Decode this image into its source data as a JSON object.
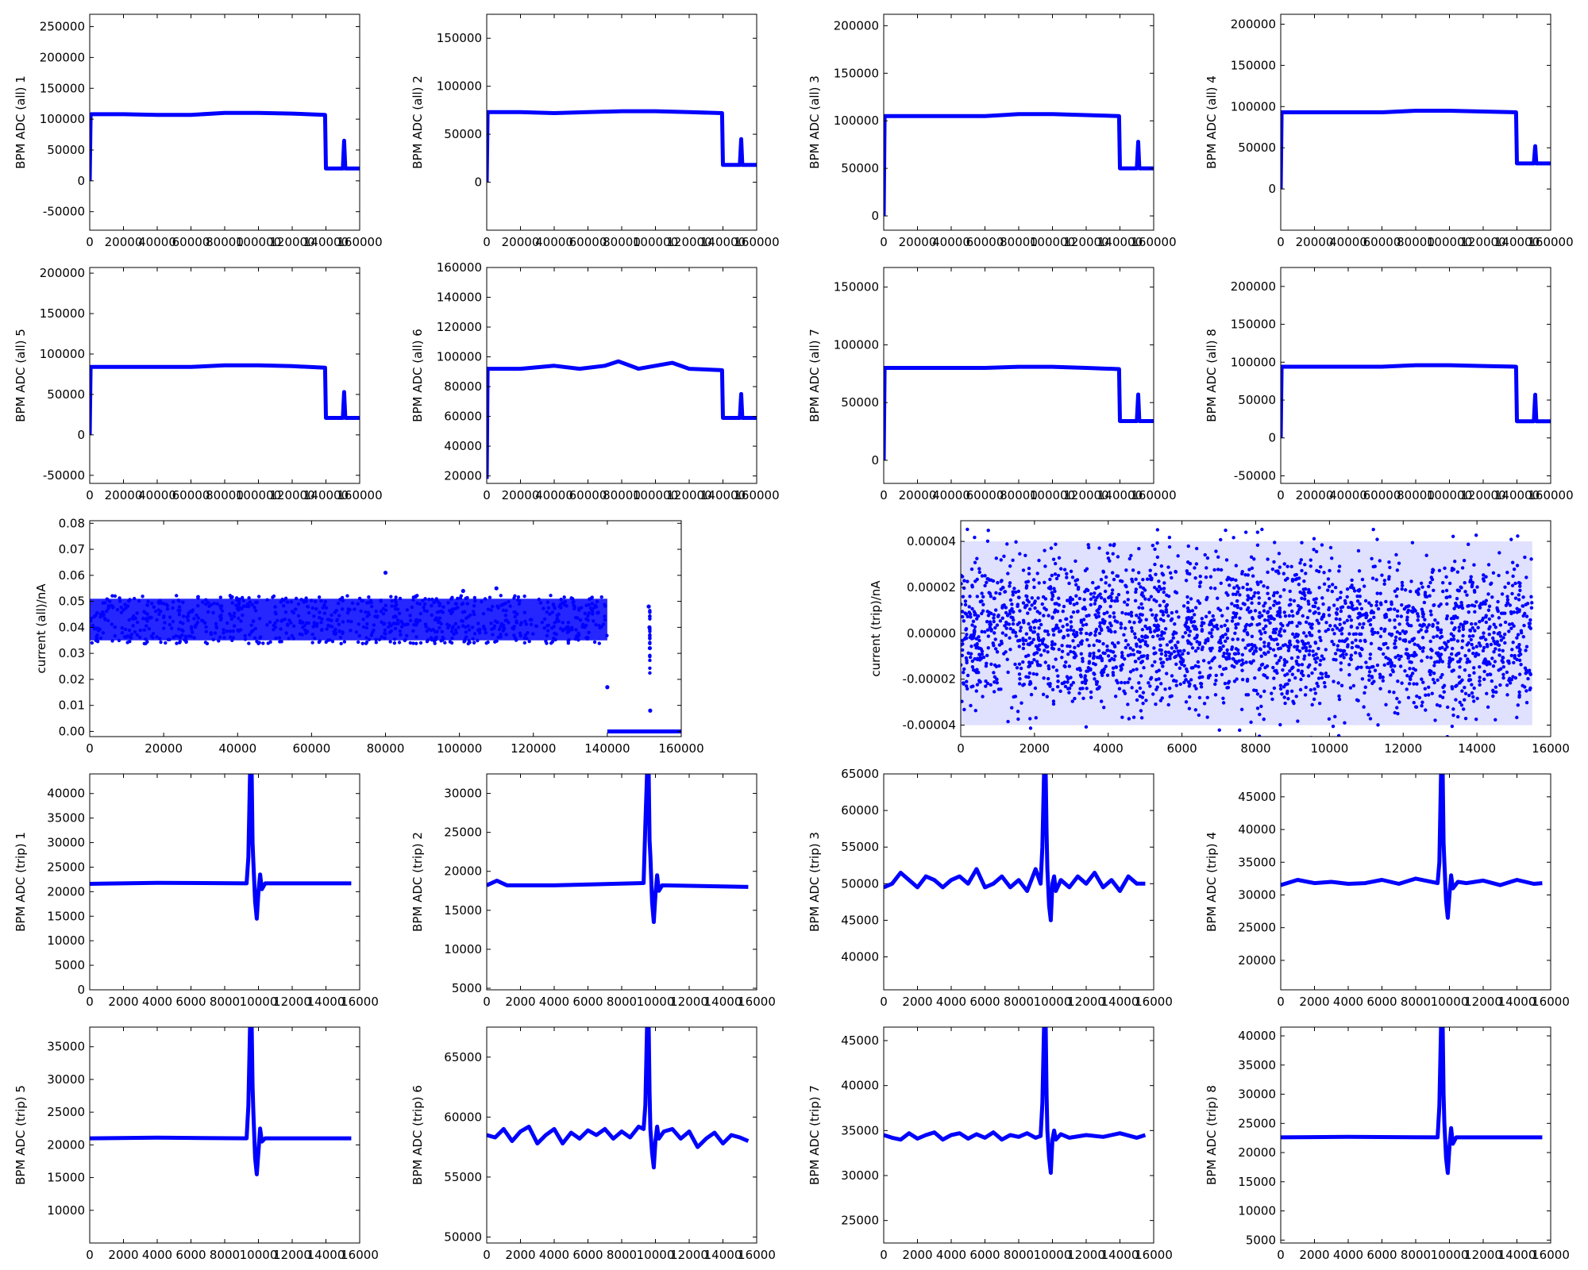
{
  "style": {
    "series_color": "#0000ff",
    "axes_color": "#000000",
    "background": "#ffffff"
  },
  "chart_data": [
    {
      "type": "line",
      "ylabel": "BPM ADC (all) 1",
      "xlim": [
        0,
        160000
      ],
      "ylim": [
        -80000,
        270000
      ],
      "xticks": [
        0,
        20000,
        40000,
        60000,
        80000,
        100000,
        120000,
        140000,
        160000
      ],
      "yticks": [
        -50000,
        0,
        50000,
        100000,
        150000,
        200000,
        250000
      ],
      "x": [
        0,
        500,
        1000,
        20000,
        40000,
        60000,
        80000,
        100000,
        120000,
        139500,
        140000,
        148000,
        150000,
        150800,
        151500,
        160000
      ],
      "y": [
        0,
        105000,
        108000,
        108000,
        107000,
        107000,
        110000,
        110000,
        109000,
        107000,
        20000,
        20000,
        20000,
        65000,
        20000,
        20000
      ]
    },
    {
      "type": "line",
      "ylabel": "BPM ADC (all) 2",
      "xlim": [
        0,
        160000
      ],
      "ylim": [
        -50000,
        175000
      ],
      "xticks": [
        0,
        20000,
        40000,
        60000,
        80000,
        100000,
        120000,
        140000,
        160000
      ],
      "yticks": [
        0,
        50000,
        100000,
        150000
      ],
      "x": [
        0,
        500,
        1000,
        20000,
        40000,
        60000,
        80000,
        100000,
        120000,
        139500,
        140000,
        148000,
        150000,
        150800,
        151500,
        160000
      ],
      "y": [
        0,
        73000,
        73000,
        73000,
        72000,
        73000,
        74000,
        74000,
        73000,
        72000,
        18000,
        18000,
        18000,
        45000,
        18000,
        18000
      ]
    },
    {
      "type": "line",
      "ylabel": "BPM ADC (all) 3",
      "xlim": [
        0,
        160000
      ],
      "ylim": [
        -15000,
        212000
      ],
      "xticks": [
        0,
        20000,
        40000,
        60000,
        80000,
        100000,
        120000,
        140000,
        160000
      ],
      "yticks": [
        0,
        50000,
        100000,
        150000,
        200000
      ],
      "x": [
        0,
        500,
        1000,
        20000,
        40000,
        60000,
        80000,
        100000,
        120000,
        139500,
        140000,
        148000,
        150000,
        150800,
        151500,
        160000
      ],
      "y": [
        0,
        105000,
        105000,
        105000,
        105000,
        105000,
        107000,
        107000,
        106000,
        105000,
        50000,
        50000,
        50000,
        78000,
        50000,
        50000
      ]
    },
    {
      "type": "line",
      "ylabel": "BPM ADC (all) 4",
      "xlim": [
        0,
        160000
      ],
      "ylim": [
        -50000,
        212000
      ],
      "xticks": [
        0,
        20000,
        40000,
        60000,
        80000,
        100000,
        120000,
        140000,
        160000
      ],
      "yticks": [
        0,
        50000,
        100000,
        150000,
        200000
      ],
      "x": [
        0,
        500,
        1000,
        20000,
        40000,
        60000,
        80000,
        100000,
        120000,
        139500,
        140000,
        148000,
        150000,
        150800,
        151500,
        160000
      ],
      "y": [
        0,
        93000,
        93000,
        93000,
        93000,
        93000,
        95000,
        95000,
        94000,
        93000,
        31000,
        31000,
        31000,
        52000,
        31000,
        31000
      ]
    },
    {
      "type": "line",
      "ylabel": "BPM ADC (all) 5",
      "xlim": [
        0,
        160000
      ],
      "ylim": [
        -60000,
        207000
      ],
      "xticks": [
        0,
        20000,
        40000,
        60000,
        80000,
        100000,
        120000,
        140000,
        160000
      ],
      "yticks": [
        -50000,
        0,
        50000,
        100000,
        150000,
        200000
      ],
      "x": [
        0,
        500,
        1000,
        20000,
        40000,
        60000,
        80000,
        100000,
        120000,
        139500,
        140000,
        148000,
        150000,
        150800,
        151500,
        160000
      ],
      "y": [
        0,
        84000,
        84000,
        84000,
        84000,
        84000,
        86000,
        86000,
        85000,
        83000,
        21000,
        21000,
        21000,
        53000,
        21000,
        21000
      ]
    },
    {
      "type": "line",
      "ylabel": "BPM ADC (all) 6",
      "xlim": [
        0,
        160000
      ],
      "ylim": [
        15000,
        160000
      ],
      "xticks": [
        0,
        20000,
        40000,
        60000,
        80000,
        100000,
        120000,
        140000,
        160000
      ],
      "yticks": [
        20000,
        40000,
        60000,
        80000,
        100000,
        120000,
        140000,
        160000
      ],
      "x": [
        0,
        500,
        1000,
        20000,
        40000,
        55000,
        70000,
        78000,
        90000,
        110000,
        120000,
        139500,
        140000,
        148000,
        150000,
        150800,
        151500,
        160000
      ],
      "y": [
        18000,
        92000,
        92000,
        92000,
        94000,
        92000,
        94000,
        97000,
        92000,
        96000,
        92000,
        91000,
        59000,
        59000,
        59000,
        75000,
        59000,
        59000
      ]
    },
    {
      "type": "line",
      "ylabel": "BPM ADC (all) 7",
      "xlim": [
        0,
        160000
      ],
      "ylim": [
        -20000,
        167000
      ],
      "xticks": [
        0,
        20000,
        40000,
        60000,
        80000,
        100000,
        120000,
        140000,
        160000
      ],
      "yticks": [
        0,
        50000,
        100000,
        150000
      ],
      "x": [
        0,
        500,
        1000,
        20000,
        40000,
        60000,
        80000,
        100000,
        120000,
        139500,
        140000,
        148000,
        150000,
        150800,
        151500,
        160000
      ],
      "y": [
        0,
        80000,
        80000,
        80000,
        80000,
        80000,
        81000,
        81000,
        80000,
        79000,
        34000,
        34000,
        34000,
        57000,
        34000,
        34000
      ]
    },
    {
      "type": "line",
      "ylabel": "BPM ADC (all) 8",
      "xlim": [
        0,
        160000
      ],
      "ylim": [
        -60000,
        225000
      ],
      "xticks": [
        0,
        20000,
        40000,
        60000,
        80000,
        100000,
        120000,
        140000,
        160000
      ],
      "yticks": [
        -50000,
        0,
        50000,
        100000,
        150000,
        200000
      ],
      "x": [
        0,
        500,
        1000,
        20000,
        40000,
        60000,
        80000,
        100000,
        120000,
        139500,
        140000,
        148000,
        150000,
        150800,
        151500,
        160000
      ],
      "y": [
        0,
        94000,
        94000,
        94000,
        94000,
        94000,
        96000,
        96000,
        95000,
        94000,
        22000,
        22000,
        22000,
        57000,
        22000,
        22000
      ]
    },
    {
      "type": "scatter",
      "ylabel": "current (all)/nA",
      "xlim": [
        0,
        160000
      ],
      "ylim": [
        -0.002,
        0.081
      ],
      "xticks": [
        0,
        20000,
        40000,
        60000,
        80000,
        100000,
        120000,
        140000,
        160000
      ],
      "yticks": [
        0.0,
        0.01,
        0.02,
        0.03,
        0.04,
        0.05,
        0.06,
        0.07,
        0.08
      ],
      "ytick_decimals": 2,
      "band": {
        "x": [
          0,
          140000
        ],
        "lower": 0.035,
        "upper": 0.051
      },
      "x": [
        80000,
        101000,
        110000,
        140000,
        151200,
        151400,
        151500,
        151600,
        151800
      ],
      "y": [
        0.061,
        0.054,
        0.055,
        0.017,
        0.048,
        0.04,
        0.032,
        0.008,
        0.0
      ]
    },
    {
      "type": "scatter",
      "ylabel": "current (trip)/nA",
      "xlim": [
        0,
        16000
      ],
      "ylim": [
        -4.5e-05,
        4.9e-05
      ],
      "xticks": [
        0,
        2000,
        4000,
        6000,
        8000,
        10000,
        12000,
        14000,
        16000
      ],
      "yticks": [
        -4e-05,
        -2e-05,
        0.0,
        2e-05,
        4e-05
      ],
      "ytick_decimals": 5,
      "band": {
        "x": [
          0,
          15500
        ],
        "lower": -4e-05,
        "upper": 4e-05
      }
    },
    {
      "type": "line",
      "ylabel": "BPM ADC (trip) 1",
      "xlim": [
        0,
        16000
      ],
      "ylim": [
        0,
        44000
      ],
      "xticks": [
        0,
        2000,
        4000,
        6000,
        8000,
        10000,
        12000,
        14000,
        16000
      ],
      "yticks": [
        0,
        5000,
        10000,
        15000,
        20000,
        25000,
        30000,
        35000,
        40000
      ],
      "x": [
        0,
        4000,
        9300,
        9400,
        9500,
        9600,
        9650,
        9700,
        9800,
        9900,
        10000,
        10100,
        10200,
        10400,
        15500
      ],
      "y": [
        21600,
        21800,
        21700,
        27000,
        44000,
        44000,
        30000,
        26000,
        18000,
        14500,
        20000,
        23500,
        20500,
        21700,
        21700
      ]
    },
    {
      "type": "line",
      "ylabel": "BPM ADC (trip) 2",
      "xlim": [
        0,
        16000
      ],
      "ylim": [
        4800,
        32500
      ],
      "xticks": [
        0,
        2000,
        4000,
        6000,
        8000,
        10000,
        12000,
        14000,
        16000
      ],
      "yticks": [
        5000,
        10000,
        15000,
        20000,
        25000,
        30000
      ],
      "x": [
        0,
        600,
        1200,
        4000,
        9300,
        9400,
        9500,
        9600,
        9650,
        9700,
        9800,
        9900,
        10000,
        10100,
        10200,
        10400,
        15500
      ],
      "y": [
        18200,
        18800,
        18200,
        18200,
        18500,
        26000,
        32500,
        32500,
        24000,
        22000,
        16000,
        13500,
        17000,
        19500,
        17500,
        18200,
        18000
      ]
    },
    {
      "type": "line",
      "ylabel": "BPM ADC (trip) 3",
      "xlim": [
        0,
        16000
      ],
      "ylim": [
        35500,
        65000
      ],
      "xticks": [
        0,
        2000,
        4000,
        6000,
        8000,
        10000,
        12000,
        14000,
        16000
      ],
      "yticks": [
        40000,
        45000,
        50000,
        55000,
        60000,
        65000
      ],
      "x": [
        0,
        500,
        1000,
        1500,
        2000,
        2500,
        3000,
        3500,
        4000,
        4500,
        5000,
        5500,
        6000,
        6500,
        7000,
        7500,
        8000,
        8500,
        9000,
        9300,
        9400,
        9500,
        9600,
        9650,
        9700,
        9800,
        9900,
        10000,
        10100,
        10200,
        10500,
        11000,
        11500,
        12000,
        12500,
        13000,
        13500,
        14000,
        14500,
        15000,
        15500
      ],
      "y": [
        49500,
        50000,
        51500,
        50500,
        49500,
        51000,
        50500,
        49500,
        50500,
        51000,
        50000,
        52000,
        49500,
        50000,
        51000,
        49500,
        50500,
        49000,
        52000,
        50000,
        55000,
        65000,
        65000,
        57000,
        52000,
        47000,
        45000,
        50000,
        51000,
        49000,
        50500,
        49500,
        51000,
        50000,
        51500,
        49500,
        50500,
        49000,
        51000,
        50000,
        50000
      ]
    },
    {
      "type": "line",
      "ylabel": "BPM ADC (trip) 4",
      "xlim": [
        0,
        16000
      ],
      "ylim": [
        15500,
        48500
      ],
      "xticks": [
        0,
        2000,
        4000,
        6000,
        8000,
        10000,
        12000,
        14000,
        16000
      ],
      "yticks": [
        20000,
        25000,
        30000,
        35000,
        40000,
        45000
      ],
      "x": [
        0,
        1000,
        2000,
        3000,
        4000,
        5000,
        6000,
        7000,
        8000,
        9300,
        9400,
        9500,
        9600,
        9650,
        9700,
        9800,
        9900,
        10000,
        10100,
        10200,
        10500,
        11000,
        12000,
        13000,
        14000,
        15000,
        15500
      ],
      "y": [
        31500,
        32300,
        31800,
        32000,
        31700,
        31800,
        32300,
        31700,
        32500,
        31800,
        35000,
        48500,
        48500,
        38000,
        35000,
        29000,
        26500,
        30000,
        33000,
        31000,
        32000,
        31800,
        32200,
        31500,
        32300,
        31700,
        31800
      ]
    },
    {
      "type": "line",
      "ylabel": "BPM ADC (trip) 5",
      "xlim": [
        0,
        16000
      ],
      "ylim": [
        5000,
        38000
      ],
      "xticks": [
        0,
        2000,
        4000,
        6000,
        8000,
        10000,
        12000,
        14000,
        16000
      ],
      "yticks": [
        10000,
        15000,
        20000,
        25000,
        30000,
        35000
      ],
      "x": [
        0,
        4000,
        9300,
        9400,
        9500,
        9600,
        9650,
        9700,
        9800,
        9900,
        10000,
        10100,
        10200,
        10400,
        15500
      ],
      "y": [
        21000,
        21100,
        21000,
        26000,
        38000,
        38000,
        29000,
        25000,
        18000,
        15500,
        19000,
        22500,
        20500,
        21000,
        21000
      ]
    },
    {
      "type": "line",
      "ylabel": "BPM ADC (trip) 6",
      "xlim": [
        0,
        16000
      ],
      "ylim": [
        49500,
        67500
      ],
      "xticks": [
        0,
        2000,
        4000,
        6000,
        8000,
        10000,
        12000,
        14000,
        16000
      ],
      "yticks": [
        50000,
        55000,
        60000,
        65000
      ],
      "x": [
        0,
        500,
        1000,
        1500,
        2000,
        2500,
        3000,
        3500,
        4000,
        4500,
        5000,
        5500,
        6000,
        6500,
        7000,
        7500,
        8000,
        8500,
        9000,
        9300,
        9400,
        9500,
        9600,
        9650,
        9700,
        9800,
        9900,
        10000,
        10100,
        10200,
        10500,
        11000,
        11500,
        12000,
        12500,
        13000,
        13500,
        14000,
        14500,
        15000,
        15500
      ],
      "y": [
        58500,
        58300,
        59000,
        58000,
        58800,
        59200,
        57800,
        58500,
        59000,
        57800,
        58700,
        58200,
        58900,
        58500,
        59000,
        58200,
        58800,
        58300,
        59200,
        59000,
        61000,
        67500,
        67500,
        62000,
        59000,
        57000,
        55800,
        58000,
        59200,
        58200,
        58800,
        59000,
        58200,
        58800,
        57500,
        58200,
        58700,
        57800,
        58500,
        58300,
        58000
      ]
    },
    {
      "type": "line",
      "ylabel": "BPM ADC (trip) 7",
      "xlim": [
        0,
        16000
      ],
      "ylim": [
        22500,
        46500
      ],
      "xticks": [
        0,
        2000,
        4000,
        6000,
        8000,
        10000,
        12000,
        14000,
        16000
      ],
      "yticks": [
        25000,
        30000,
        35000,
        40000,
        45000
      ],
      "x": [
        0,
        500,
        1000,
        1500,
        2000,
        2500,
        3000,
        3500,
        4000,
        4500,
        5000,
        5500,
        6000,
        6500,
        7000,
        7500,
        8000,
        8500,
        9000,
        9300,
        9400,
        9500,
        9600,
        9650,
        9700,
        9800,
        9900,
        10000,
        10100,
        10200,
        10500,
        11000,
        12000,
        13000,
        14000,
        15000,
        15500
      ],
      "y": [
        34500,
        34200,
        34000,
        34700,
        34100,
        34500,
        34800,
        34000,
        34500,
        34700,
        34100,
        34600,
        34200,
        34800,
        34000,
        34500,
        34300,
        34700,
        34200,
        34400,
        38000,
        46500,
        46500,
        39000,
        35000,
        32000,
        30300,
        34000,
        35000,
        34000,
        34600,
        34200,
        34500,
        34300,
        34700,
        34200,
        34500
      ]
    },
    {
      "type": "line",
      "ylabel": "BPM ADC (trip) 8",
      "xlim": [
        0,
        16000
      ],
      "ylim": [
        4500,
        41500
      ],
      "xticks": [
        0,
        2000,
        4000,
        6000,
        8000,
        10000,
        12000,
        14000,
        16000
      ],
      "yticks": [
        5000,
        10000,
        15000,
        20000,
        25000,
        30000,
        35000,
        40000
      ],
      "x": [
        0,
        4000,
        9300,
        9400,
        9500,
        9600,
        9650,
        9700,
        9800,
        9900,
        10000,
        10100,
        10200,
        10400,
        15500
      ],
      "y": [
        22600,
        22700,
        22600,
        28000,
        41500,
        41500,
        30000,
        25000,
        19000,
        16500,
        21000,
        24200,
        21500,
        22600,
        22600
      ]
    }
  ]
}
